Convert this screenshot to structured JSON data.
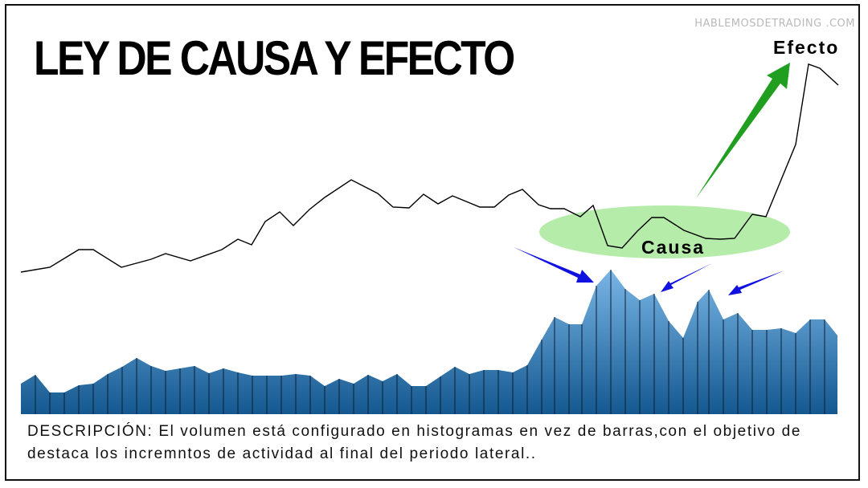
{
  "title": "LEY DE CAUSA Y EFECTO",
  "watermark": "HABLEMOSDETRADING .COM",
  "labels": {
    "effect": "Efecto",
    "cause": "Causa"
  },
  "description": "DESCRIPCIÓN: El volumen está configurado en histogramas en vez de barras,con el objetivo de destaca los incremntos de actividad al final del periodo lateral..",
  "colors": {
    "price_line": "#000000",
    "cause_ellipse": "#b5ecaa",
    "effect_arrow": "#1f9e1f",
    "volume_arrows": "#1010e0",
    "volume_fill_top": "#7ab6e6",
    "volume_fill_bottom": "#14588f",
    "volume_bar_divider": "#0a1e36"
  },
  "icons": {
    "effect_arrow": "green-up-arrow",
    "volume_arrows": "blue-pointer-arrows"
  }
}
